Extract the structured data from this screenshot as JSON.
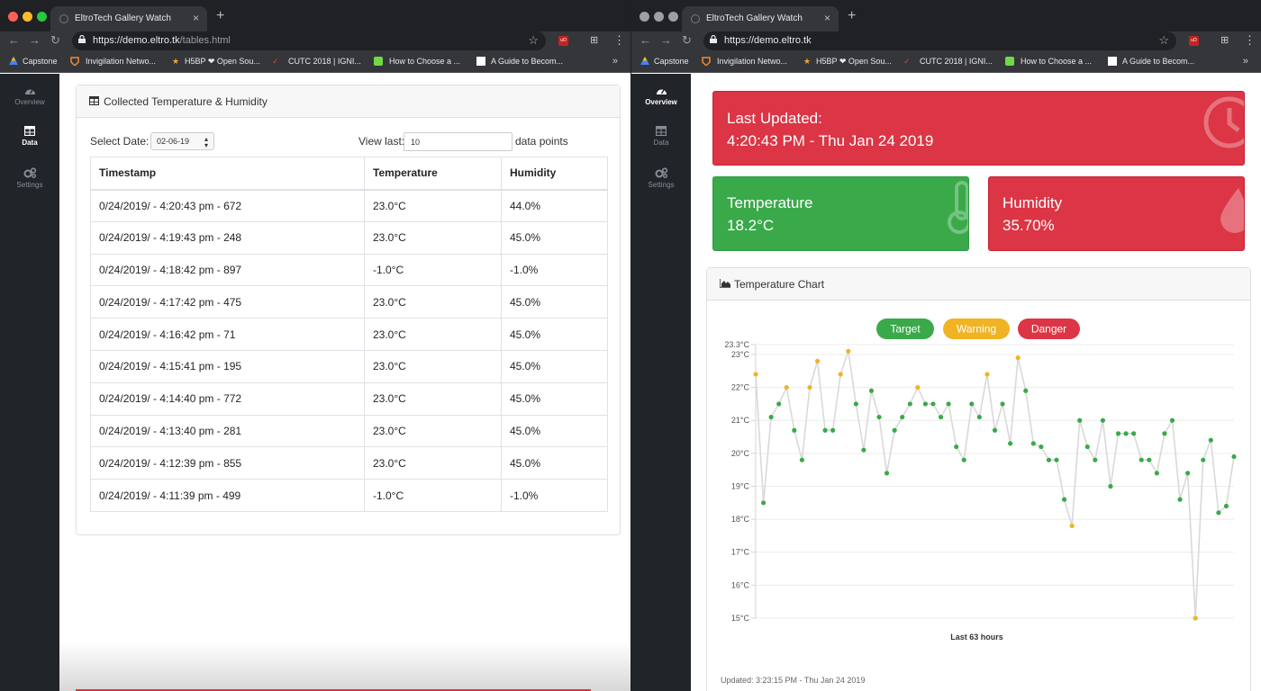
{
  "left": {
    "tab_title": "EltroTech Gallery Watch",
    "url_main": "https://demo.eltro.tk",
    "url_path": "/tables.html",
    "bookmarks": [
      "Capstone",
      "Invigilation Netwo...",
      "H5BP ❤ Open Sou...",
      "CUTC 2018 | IGNI...",
      "How to Choose a ...",
      "A Guide to Becom..."
    ],
    "sidebar": [
      {
        "label": "Overview",
        "icon": "gauge-icon"
      },
      {
        "label": "Data",
        "icon": "table-icon"
      },
      {
        "label": "Settings",
        "icon": "cogs-icon"
      }
    ],
    "card_title": "Collected Temperature & Humidity",
    "select_date_label": "Select Date:",
    "select_date_value": "02-06-19",
    "view_last_label": "View last:",
    "view_last_value": "10",
    "data_points_label": "data points",
    "table": {
      "headers": [
        "Timestamp",
        "Temperature",
        "Humidity"
      ],
      "rows": [
        [
          "0/24/2019/ - 4:20:43 pm - 672",
          "23.0°C",
          "44.0%"
        ],
        [
          "0/24/2019/ - 4:19:43 pm - 248",
          "23.0°C",
          "45.0%"
        ],
        [
          "0/24/2019/ - 4:18:42 pm - 897",
          "-1.0°C",
          "-1.0%"
        ],
        [
          "0/24/2019/ - 4:17:42 pm - 475",
          "23.0°C",
          "45.0%"
        ],
        [
          "0/24/2019/ - 4:16:42 pm - 71",
          "23.0°C",
          "45.0%"
        ],
        [
          "0/24/2019/ - 4:15:41 pm - 195",
          "23.0°C",
          "45.0%"
        ],
        [
          "0/24/2019/ - 4:14:40 pm - 772",
          "23.0°C",
          "45.0%"
        ],
        [
          "0/24/2019/ - 4:13:40 pm - 281",
          "23.0°C",
          "45.0%"
        ],
        [
          "0/24/2019/ - 4:12:39 pm - 855",
          "23.0°C",
          "45.0%"
        ],
        [
          "0/24/2019/ - 4:11:39 pm - 499",
          "-1.0°C",
          "-1.0%"
        ]
      ]
    }
  },
  "right": {
    "tab_title": "EltroTech Gallery Watch",
    "url_main": "https://demo.eltro.tk",
    "bookmarks": [
      "Capstone",
      "Invigilation Netwo...",
      "H5BP ❤ Open Sou...",
      "CUTC 2018 | IGNI...",
      "How to Choose a ...",
      "A Guide to Becom..."
    ],
    "sidebar": [
      {
        "label": "Overview",
        "icon": "gauge-icon"
      },
      {
        "label": "Data",
        "icon": "table-icon"
      },
      {
        "label": "Settings",
        "icon": "cogs-icon"
      }
    ],
    "last_updated_label": "Last Updated:",
    "last_updated_value": "4:20:43 PM - Thu Jan 24 2019",
    "temperature_label": "Temperature",
    "temperature_value": "18.2°C",
    "humidity_label": "Humidity",
    "humidity_value": "35.70%",
    "chart_card_title": "Temperature Chart",
    "footer_updated": "Updated: 3:23:15 PM - Thu Jan 24 2019"
  },
  "colors": {
    "danger": "#dc3545",
    "success": "#3aa94a",
    "warning": "#f0b323",
    "sidebar_bg": "#212529",
    "chrome_bg": "#35363a"
  },
  "chart_data": {
    "type": "scatter",
    "title": "",
    "xlabel": "Last 63 hours",
    "ylabel": "",
    "ylim": [
      15,
      23.3
    ],
    "y_ticks": [
      "23.3°C",
      "23°C",
      "22°C",
      "21°C",
      "20°C",
      "19°C",
      "18°C",
      "17°C",
      "16°C",
      "15°C"
    ],
    "legend": [
      "Target",
      "Warning",
      "Danger"
    ],
    "legend_placement": "top-center",
    "grid": true,
    "line_color": "#d9d9d9",
    "series": [
      {
        "name": "Target",
        "color": "#3aa94a"
      },
      {
        "name": "Warning",
        "color": "#f0b323"
      },
      {
        "name": "Danger",
        "color": "#dc3545"
      }
    ],
    "points": [
      {
        "y": 22.4,
        "status": "Warning"
      },
      {
        "y": 18.5,
        "status": "Target"
      },
      {
        "y": 21.1,
        "status": "Target"
      },
      {
        "y": 21.5,
        "status": "Target"
      },
      {
        "y": 22.0,
        "status": "Warning"
      },
      {
        "y": 20.7,
        "status": "Target"
      },
      {
        "y": 19.8,
        "status": "Target"
      },
      {
        "y": 22.0,
        "status": "Warning"
      },
      {
        "y": 22.8,
        "status": "Warning"
      },
      {
        "y": 20.7,
        "status": "Target"
      },
      {
        "y": 20.7,
        "status": "Target"
      },
      {
        "y": 22.4,
        "status": "Warning"
      },
      {
        "y": 23.1,
        "status": "Warning"
      },
      {
        "y": 21.5,
        "status": "Target"
      },
      {
        "y": 20.1,
        "status": "Target"
      },
      {
        "y": 21.9,
        "status": "Target"
      },
      {
        "y": 21.1,
        "status": "Target"
      },
      {
        "y": 19.4,
        "status": "Target"
      },
      {
        "y": 20.7,
        "status": "Target"
      },
      {
        "y": 21.1,
        "status": "Target"
      },
      {
        "y": 21.5,
        "status": "Target"
      },
      {
        "y": 22.0,
        "status": "Warning"
      },
      {
        "y": 21.5,
        "status": "Target"
      },
      {
        "y": 21.5,
        "status": "Target"
      },
      {
        "y": 21.1,
        "status": "Target"
      },
      {
        "y": 21.5,
        "status": "Target"
      },
      {
        "y": 20.2,
        "status": "Target"
      },
      {
        "y": 19.8,
        "status": "Target"
      },
      {
        "y": 21.5,
        "status": "Target"
      },
      {
        "y": 21.1,
        "status": "Target"
      },
      {
        "y": 22.4,
        "status": "Warning"
      },
      {
        "y": 20.7,
        "status": "Target"
      },
      {
        "y": 21.5,
        "status": "Target"
      },
      {
        "y": 20.3,
        "status": "Target"
      },
      {
        "y": 22.9,
        "status": "Warning"
      },
      {
        "y": 21.9,
        "status": "Target"
      },
      {
        "y": 20.3,
        "status": "Target"
      },
      {
        "y": 20.2,
        "status": "Target"
      },
      {
        "y": 19.8,
        "status": "Target"
      },
      {
        "y": 19.8,
        "status": "Target"
      },
      {
        "y": 18.6,
        "status": "Target"
      },
      {
        "y": 17.8,
        "status": "Warning"
      },
      {
        "y": 21.0,
        "status": "Target"
      },
      {
        "y": 20.2,
        "status": "Target"
      },
      {
        "y": 19.8,
        "status": "Target"
      },
      {
        "y": 21.0,
        "status": "Target"
      },
      {
        "y": 19.0,
        "status": "Target"
      },
      {
        "y": 20.6,
        "status": "Target"
      },
      {
        "y": 20.6,
        "status": "Target"
      },
      {
        "y": 20.6,
        "status": "Target"
      },
      {
        "y": 19.8,
        "status": "Target"
      },
      {
        "y": 19.8,
        "status": "Target"
      },
      {
        "y": 19.4,
        "status": "Target"
      },
      {
        "y": 20.6,
        "status": "Target"
      },
      {
        "y": 21.0,
        "status": "Target"
      },
      {
        "y": 18.6,
        "status": "Target"
      },
      {
        "y": 19.4,
        "status": "Target"
      },
      {
        "y": 15.0,
        "status": "Warning"
      },
      {
        "y": 19.8,
        "status": "Target"
      },
      {
        "y": 20.4,
        "status": "Target"
      },
      {
        "y": 18.2,
        "status": "Target"
      },
      {
        "y": 18.4,
        "status": "Target"
      },
      {
        "y": 19.9,
        "status": "Target"
      }
    ]
  }
}
